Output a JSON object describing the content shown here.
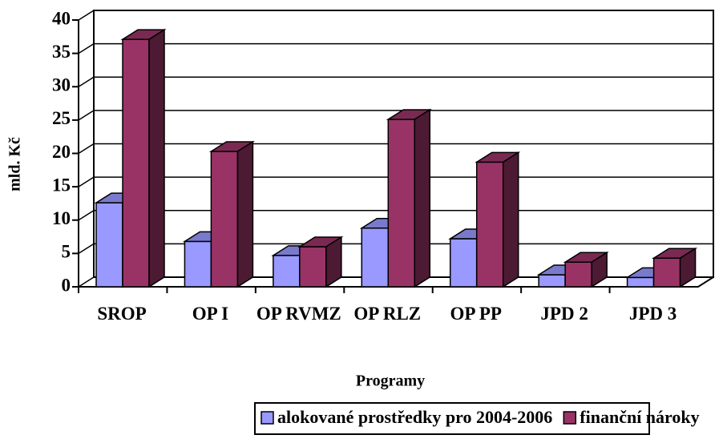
{
  "chart_data": {
    "type": "bar3d",
    "categories": [
      "SROP",
      "OP I",
      "OP RVMZ",
      "OP RLZ",
      "OP PP",
      "JPD 2",
      "JPD 3"
    ],
    "series": [
      {
        "name": "alokované prostředky pro 2004-2006",
        "color": "#9999ff",
        "values": [
          12.6,
          6.8,
          4.7,
          8.8,
          7.2,
          1.8,
          1.4
        ]
      },
      {
        "name": "finanční nároky",
        "color": "#993366",
        "values": [
          37.1,
          20.3,
          6,
          25.1,
          18.7,
          3.7,
          4.3
        ]
      }
    ],
    "ylabel": "mld. Kč",
    "xlabel": "Programy",
    "ylim": [
      0,
      40
    ],
    "yticks": [
      0,
      5,
      10,
      15,
      20,
      25,
      30,
      35,
      40
    ],
    "grid": true
  }
}
